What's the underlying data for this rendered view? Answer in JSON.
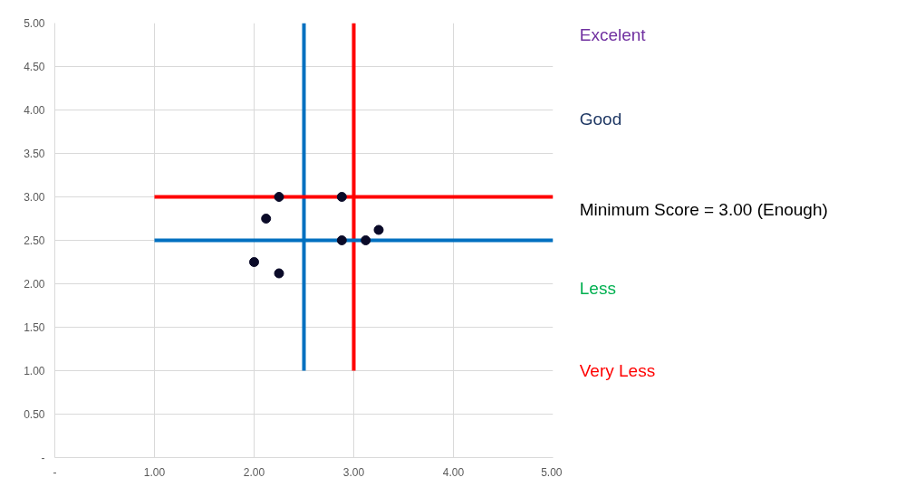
{
  "chart_data": {
    "type": "scatter",
    "xlim": [
      0,
      5
    ],
    "ylim": [
      0,
      5
    ],
    "xticks": [
      {
        "value": 0,
        "label": "-"
      },
      {
        "value": 1,
        "label": "1.00"
      },
      {
        "value": 2,
        "label": "2.00"
      },
      {
        "value": 3,
        "label": "3.00"
      },
      {
        "value": 4,
        "label": "4.00"
      },
      {
        "value": 5,
        "label": "5.00"
      }
    ],
    "yticks": [
      {
        "value": 0,
        "label": "-"
      },
      {
        "value": 0.5,
        "label": "0.50"
      },
      {
        "value": 1,
        "label": "1.00"
      },
      {
        "value": 1.5,
        "label": "1.50"
      },
      {
        "value": 2,
        "label": "2.00"
      },
      {
        "value": 2.5,
        "label": "2.50"
      },
      {
        "value": 3,
        "label": "3.00"
      },
      {
        "value": 3.5,
        "label": "3.50"
      },
      {
        "value": 4,
        "label": "4.00"
      },
      {
        "value": 4.5,
        "label": "4.50"
      },
      {
        "value": 5,
        "label": "5.00"
      }
    ],
    "grid": true,
    "series": [
      {
        "type": "line",
        "color": "#0070c0",
        "x": [
          2.5,
          2.5
        ],
        "values": [
          1,
          5
        ]
      },
      {
        "type": "line",
        "color": "#ff0000",
        "x": [
          3,
          3
        ],
        "values": [
          1,
          5
        ]
      },
      {
        "type": "line",
        "color": "#ff0000",
        "x": [
          1,
          5
        ],
        "values": [
          3,
          3
        ]
      },
      {
        "type": "line",
        "color": "#0070c0",
        "x": [
          1,
          5
        ],
        "values": [
          2.5,
          2.5
        ]
      },
      {
        "color": "#0a0a28",
        "marker": "circle",
        "x": [
          2.25,
          2.88,
          2.12,
          2.0,
          2.25,
          2.88,
          3.12,
          3.25
        ],
        "values": [
          3.0,
          3.0,
          2.75,
          2.25,
          2.12,
          2.5,
          2.5,
          2.62
        ]
      }
    ],
    "annotations": [
      "Excelent",
      "Good",
      "Minimum Score = 3.00 (Enough)",
      "Less",
      "Very Less"
    ]
  }
}
